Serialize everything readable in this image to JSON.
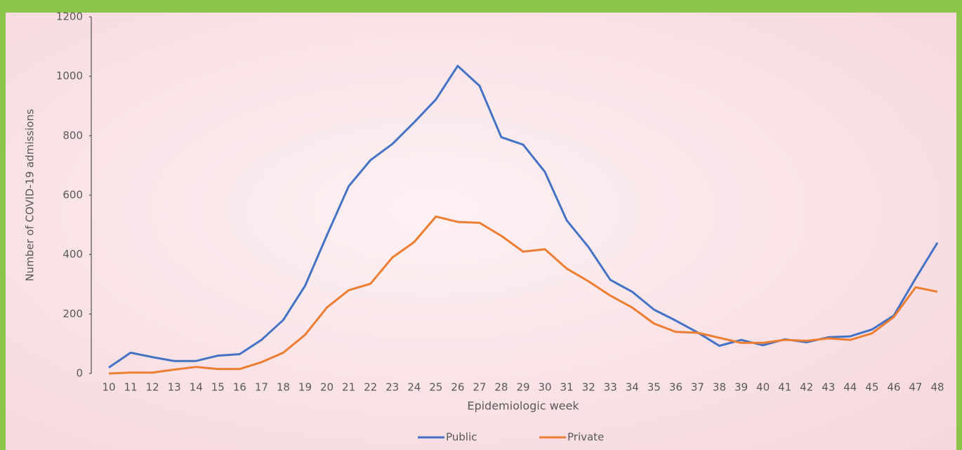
{
  "chart_data": {
    "type": "line",
    "y_label": "Number of COVID-19 admissions",
    "x_label": "Epidemiologic week",
    "categories": [
      "10",
      "11",
      "12",
      "13",
      "14",
      "15",
      "16",
      "17",
      "18",
      "19",
      "20",
      "21",
      "22",
      "23",
      "24",
      "25",
      "26",
      "27",
      "28",
      "29",
      "30",
      "31",
      "32",
      "33",
      "34",
      "35",
      "36",
      "37",
      "38",
      "39",
      "40",
      "41",
      "42",
      "43",
      "44",
      "45",
      "46",
      "47",
      "48"
    ],
    "series": [
      {
        "name": "Public",
        "color": "#4472c4",
        "values": [
          20,
          70,
          55,
          42,
          42,
          60,
          65,
          113,
          180,
          295,
          465,
          630,
          718,
          772,
          845,
          922,
          1035,
          968,
          795,
          770,
          678,
          515,
          425,
          315,
          275,
          215,
          178,
          138,
          93,
          113,
          95,
          115,
          105,
          122,
          125,
          148,
          195,
          320,
          440
        ]
      },
      {
        "name": "Private",
        "color": "#ed7d31",
        "values": [
          0,
          3,
          3,
          13,
          22,
          15,
          15,
          38,
          70,
          130,
          222,
          280,
          302,
          390,
          442,
          528,
          510,
          507,
          463,
          410,
          418,
          353,
          310,
          262,
          222,
          168,
          140,
          137,
          120,
          103,
          103,
          113,
          110,
          118,
          113,
          135,
          190,
          290,
          275
        ]
      }
    ],
    "ylim": [
      0,
      1200
    ],
    "yticks": [
      0,
      200,
      400,
      600,
      800,
      1000,
      1200
    ],
    "grid": false,
    "legend": "bottom"
  }
}
